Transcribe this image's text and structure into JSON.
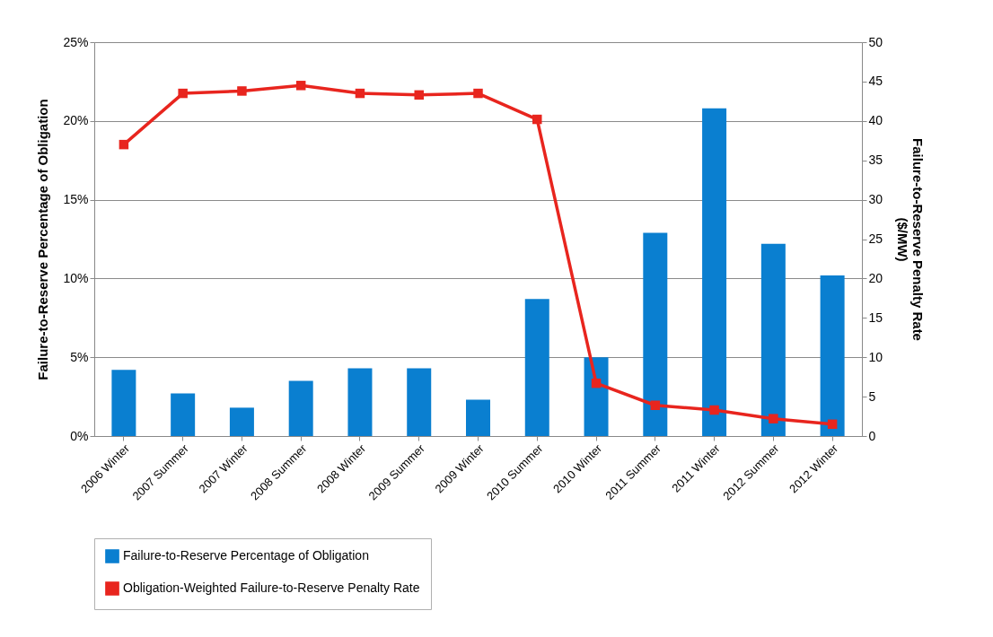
{
  "chart_data": {
    "type": "bar",
    "ylabel": "Failure-to-Reserve Percentage of Obligation",
    "y2label": "Failure-to-Reserve  Penalty Rate\n($/MW)",
    "categories": [
      "2006 Winter",
      "2007 Summer",
      "2007 Winter",
      "2008 Summer",
      "2008 Winter",
      "2009 Summer",
      "2009 Winter",
      "2010 Summer",
      "2010 Winter",
      "2011 Summer",
      "2011 Winter",
      "2012 Summer",
      "2012 Winter"
    ],
    "series": [
      {
        "name": "Failure-to-Reserve Percentage of Obligation",
        "color": "#0a7fd0",
        "values": [
          4.2,
          2.7,
          1.8,
          3.5,
          4.3,
          4.3,
          2.3,
          8.7,
          5.0,
          12.9,
          20.8,
          12.2,
          10.2
        ]
      },
      {
        "name": "Obligation-Weighted Failure-to-Reserve Penalty Rate",
        "type": "line",
        "axis": "y2",
        "color": "#e8251e",
        "marker": "square",
        "values": [
          37.0,
          43.5,
          43.8,
          44.5,
          43.5,
          43.3,
          43.5,
          40.2,
          6.7,
          3.9,
          3.3,
          2.2,
          1.5
        ]
      }
    ],
    "ylim": [
      0,
      25
    ],
    "yticks": [
      {
        "value": 0,
        "label": "0%"
      },
      {
        "value": 5,
        "label": "5%"
      },
      {
        "value": 10,
        "label": "10%"
      },
      {
        "value": 15,
        "label": "15%"
      },
      {
        "value": 20,
        "label": "20%"
      },
      {
        "value": 25,
        "label": "25%"
      }
    ],
    "y2lim": [
      0,
      50
    ],
    "y2ticks": [
      0,
      5,
      10,
      15,
      20,
      25,
      30,
      35,
      40,
      45,
      50
    ],
    "grid": "y",
    "legend": "bottom"
  }
}
